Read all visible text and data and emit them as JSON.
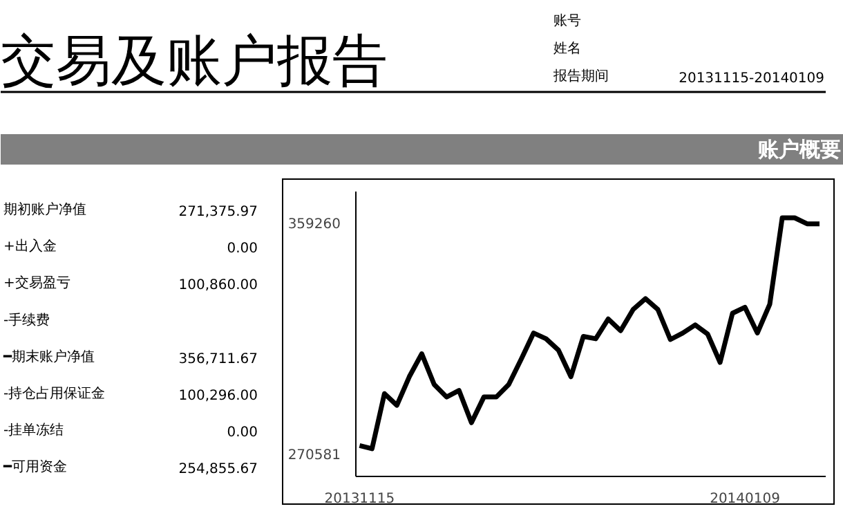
{
  "chart_data": [
    {
      "type": "other",
      "title": "交易及账户报告",
      "subtitle": "账户概要",
      "annotations": [
        "账号",
        "姓名",
        "报告期间",
        "20131115-20140109"
      ],
      "categories": [
        "期初账户净值",
        "+出入金",
        "+交易盈亏",
        "-手续费",
        "━期末账户净值",
        "-持仓占用保证金",
        "-挂单冻结",
        "━可用资金"
      ],
      "value_labels": [
        "271,375.97",
        "0.00",
        "100,860.00",
        null,
        "356,711.67",
        "100,296.00",
        "0.00",
        "254,855.67"
      ]
    },
    {
      "type": "line",
      "categories": [
        "20131115",
        null,
        null,
        null,
        null,
        null,
        null,
        null,
        null,
        null,
        null,
        null,
        null,
        null,
        null,
        null,
        null,
        null,
        null,
        null,
        null,
        null,
        null,
        null,
        null,
        null,
        null,
        null,
        null,
        null,
        null,
        "20140109",
        null,
        null,
        null,
        null,
        null,
        null
      ],
      "series": [
        {
          "color": "#000000",
          "values": [
            273600,
            272400,
            293600,
            289100,
            300100,
            308900,
            297100,
            292300,
            294800,
            282400,
            292300,
            292300,
            297100,
            306800,
            316900,
            314700,
            310300,
            300100,
            315600,
            314700,
            322300,
            317800,
            325900,
            330100,
            325900,
            314400,
            316900,
            320000,
            316500,
            305600,
            324500,
            326800,
            316900,
            328000,
            361200,
            361200,
            358900,
            358900
          ]
        }
      ],
      "ylim": [
        261750,
        371300
      ],
      "yticks": [
        270581,
        359260
      ],
      "grid": false,
      "marker": "none",
      "line_style": "solid"
    }
  ]
}
